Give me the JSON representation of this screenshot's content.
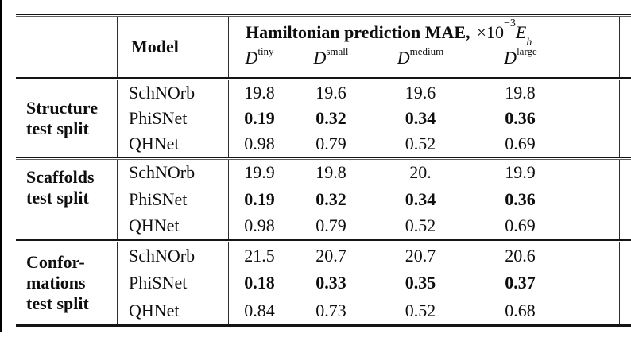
{
  "page": {
    "background": "#ffffff",
    "text_color": "#0e0e0e",
    "left_strip_color": "#000000"
  },
  "table": {
    "header": {
      "model_label": "Model",
      "metric_title": "Hamiltonian prediction MAE,",
      "metric_factor_base": "×10",
      "metric_factor_exponent": "−3",
      "metric_unit_base": "E",
      "metric_unit_subscript": "h",
      "dataset_columns": [
        {
          "symbol": "D",
          "superscript": "tiny"
        },
        {
          "symbol": "D",
          "superscript": "small"
        },
        {
          "symbol": "D",
          "superscript": "medium"
        },
        {
          "symbol": "D",
          "superscript": "large"
        }
      ]
    },
    "groups": [
      {
        "label_lines": [
          "Structure",
          "test split"
        ],
        "rows": [
          {
            "model": "SchNOrb",
            "bold": false,
            "values": [
              "19.8",
              "19.6",
              "19.6",
              "19.8"
            ]
          },
          {
            "model": "PhiSNet",
            "bold": true,
            "values": [
              "0.19",
              "0.32",
              "0.34",
              "0.36"
            ]
          },
          {
            "model": "QHNet",
            "bold": false,
            "values": [
              "0.98",
              "0.79",
              "0.52",
              "0.69"
            ]
          }
        ]
      },
      {
        "label_lines": [
          "Scaffolds",
          "test split"
        ],
        "rows": [
          {
            "model": "SchNOrb",
            "bold": false,
            "values": [
              "19.9",
              "19.8",
              "20.",
              "19.9"
            ]
          },
          {
            "model": "PhiSNet",
            "bold": true,
            "values": [
              "0.19",
              "0.32",
              "0.34",
              "0.36"
            ]
          },
          {
            "model": "QHNet",
            "bold": false,
            "values": [
              "0.98",
              "0.79",
              "0.52",
              "0.69"
            ]
          }
        ]
      },
      {
        "label_lines": [
          "Confor-",
          "mations",
          "test split"
        ],
        "rows": [
          {
            "model": "SchNOrb",
            "bold": false,
            "values": [
              "21.5",
              "20.7",
              "20.7",
              "20.6"
            ]
          },
          {
            "model": "PhiSNet",
            "bold": true,
            "values": [
              "0.18",
              "0.33",
              "0.35",
              "0.37"
            ]
          },
          {
            "model": "QHNet",
            "bold": false,
            "values": [
              "0.84",
              "0.73",
              "0.52",
              "0.68"
            ]
          }
        ]
      }
    ]
  },
  "chart_data": {
    "type": "table",
    "title": "Hamiltonian prediction MAE, ×10^−3 Eh",
    "columns": [
      "D^tiny",
      "D^small",
      "D^medium",
      "D^large"
    ],
    "row_groups": [
      {
        "group": "Structure test split",
        "rows": [
          {
            "model": "SchNOrb",
            "values": [
              19.8,
              19.6,
              19.6,
              19.8
            ],
            "bold": false
          },
          {
            "model": "PhiSNet",
            "values": [
              0.19,
              0.32,
              0.34,
              0.36
            ],
            "bold": true
          },
          {
            "model": "QHNet",
            "values": [
              0.98,
              0.79,
              0.52,
              0.69
            ],
            "bold": false
          }
        ]
      },
      {
        "group": "Scaffolds test split",
        "rows": [
          {
            "model": "SchNOrb",
            "values": [
              19.9,
              19.8,
              20.0,
              19.9
            ],
            "bold": false
          },
          {
            "model": "PhiSNet",
            "values": [
              0.19,
              0.32,
              0.34,
              0.36
            ],
            "bold": true
          },
          {
            "model": "QHNet",
            "values": [
              0.98,
              0.79,
              0.52,
              0.69
            ],
            "bold": false
          }
        ]
      },
      {
        "group": "Conformations test split",
        "rows": [
          {
            "model": "SchNOrb",
            "values": [
              21.5,
              20.7,
              20.7,
              20.6
            ],
            "bold": false
          },
          {
            "model": "PhiSNet",
            "values": [
              0.18,
              0.33,
              0.35,
              0.37
            ],
            "bold": true
          },
          {
            "model": "QHNet",
            "values": [
              0.84,
              0.73,
              0.52,
              0.68
            ],
            "bold": false
          }
        ]
      }
    ]
  }
}
